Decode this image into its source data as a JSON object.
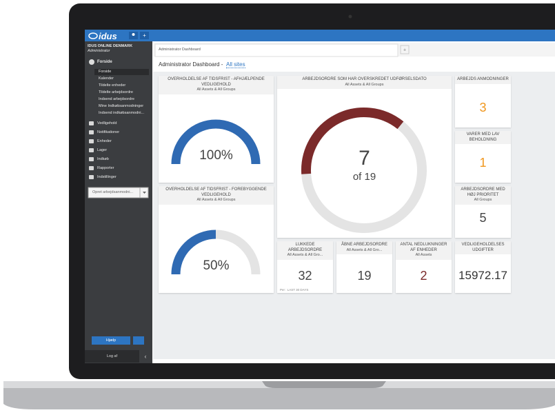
{
  "logo": "idus",
  "sidebar": {
    "org": "IDUS ONLINE DENMARK",
    "role": "Administrator",
    "menu_open": "Forside",
    "submenu": [
      "Forside",
      "Kalender",
      "Tildelte enheder",
      "Tildelte arbejdsordre",
      "Indsend arbejdsordre",
      "Mine Indkøbsanmodninger",
      "Indsend indkøbsanmodni..."
    ],
    "menu": [
      "Vedligehold",
      "Notifikationer",
      "Enheder",
      "Lager",
      "Indkøb",
      "Rapporter",
      "Indstillinger"
    ],
    "dropdown": "Opret arbejdsanmodni...",
    "help": "Hjælp",
    "logout": "Log af"
  },
  "tab": "Administrator Dashboard",
  "header": {
    "title": "Administrator Dashboard -",
    "site": "All sites"
  },
  "gauges": [
    {
      "title": "OVERHOLDELSE AF TIDSFRIST - AFHJÆLPENDE VEDLIGEHOLD",
      "subtitle": "All Assets & All Groups",
      "value": 100,
      "label": "100%",
      "color": "#2f6ab3"
    },
    {
      "title": "OVERHOLDELSE AF TIDSFRIST - FOREBYGGENDE VEDLIGEHOLD",
      "subtitle": "All Assets & All Groups",
      "value": 50,
      "label": "50%",
      "color": "#2f6ab3"
    }
  ],
  "donut": {
    "title": "ARBEJDSORDRE SOM HAR OVERSKREDET UDFØRSELSDATO",
    "subtitle": "All Assets & All Groups",
    "value": 7,
    "total": 19,
    "total_label": "of 19",
    "color": "#7b2a2a"
  },
  "tiles": [
    {
      "title": "ARBEJDS ANMODNINGER",
      "value": 3,
      "color": "#f0961c"
    },
    {
      "title": "VARER MED LAV BEHOLDNING",
      "value": 1,
      "color": "#f0961c"
    },
    {
      "title": "ARBEJDSORDRE MED HØJ PRIORITET",
      "subtitle": "All Groups",
      "value": 5,
      "color": "#444444"
    },
    {
      "title": "LUKKEDE ARBEJDSORDRE",
      "subtitle": "All Assets & All Gro...",
      "value": 32,
      "color": "#444444",
      "footer": "Per : LAST 30 DAYS"
    },
    {
      "title": "ÅBNE ARBEJDSORDRE",
      "subtitle": "All Assets & All Gro...",
      "value": 19,
      "color": "#444444"
    },
    {
      "title": "ANTAL NEDLUKNINGER AF ENHEDER",
      "subtitle": "All Assets",
      "value": 2,
      "color": "#7b2a2a"
    },
    {
      "title": "VEDLIGEHOLDELSES UDGIFTER",
      "value": 15972.17,
      "color": "#333333"
    }
  ]
}
